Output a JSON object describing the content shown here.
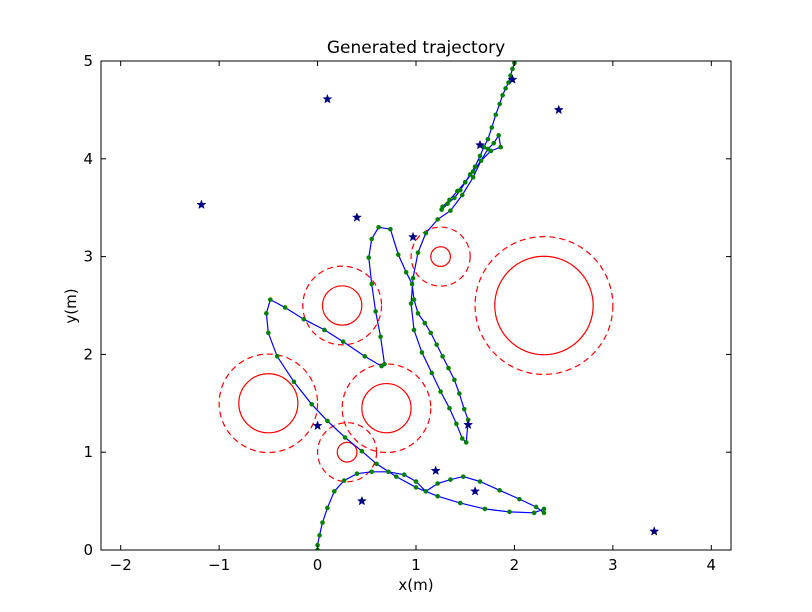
{
  "chart_data": {
    "type": "line",
    "title": "Generated trajectory",
    "xlabel": "x(m)",
    "ylabel": "y(m)",
    "xlim": [
      -2.2,
      4.2
    ],
    "ylim": [
      0,
      5
    ],
    "xticks": [
      -2,
      -1,
      0,
      1,
      2,
      3,
      4
    ],
    "yticks": [
      0,
      1,
      2,
      3,
      4,
      5
    ],
    "xtick_labels": [
      "−2",
      "−1",
      "0",
      "1",
      "2",
      "3",
      "4"
    ],
    "ytick_labels": [
      "0",
      "1",
      "2",
      "3",
      "4",
      "5"
    ],
    "grid": false,
    "colors": {
      "trajectory": "#0000ff",
      "waypoints": "#008000",
      "obstacle": "#ff0000",
      "landmarks": "#000080"
    },
    "trajectory": {
      "x": [
        0.0,
        0.0,
        0.02,
        0.05,
        0.1,
        0.17,
        0.27,
        0.4,
        0.55,
        0.72,
        0.88,
        1.0,
        1.1,
        1.22,
        1.35,
        1.48,
        1.65,
        1.85,
        2.05,
        2.22,
        2.3,
        2.3,
        2.2,
        1.95,
        1.7,
        1.45,
        1.22,
        1.0,
        0.8,
        0.6,
        0.45,
        0.28,
        0.1,
        -0.06,
        -0.24,
        -0.41,
        -0.5,
        -0.52,
        -0.48,
        -0.33,
        -0.14,
        0.07,
        0.26,
        0.48,
        0.65,
        0.68,
        0.64,
        0.59,
        0.55,
        0.52,
        0.55,
        0.62,
        0.74,
        0.82,
        0.9,
        0.96,
        0.98,
        1.02,
        1.09,
        1.15,
        1.21,
        1.27,
        1.33,
        1.39,
        1.44,
        1.49,
        1.53,
        1.51,
        1.47,
        1.41,
        1.34,
        1.25,
        1.16,
        1.06,
        0.98,
        0.95,
        0.97,
        1.02,
        1.1,
        1.22,
        1.35,
        1.47,
        1.58,
        1.66,
        1.73,
        1.79,
        1.84,
        1.86,
        1.76,
        1.66,
        1.58,
        1.5,
        1.42,
        1.34,
        1.27,
        1.26,
        1.32,
        1.39,
        1.45,
        1.5,
        1.55,
        1.6,
        1.65,
        1.69,
        1.73,
        1.77,
        1.81,
        1.85,
        1.88,
        1.91,
        1.94,
        1.96,
        1.98,
        2.0,
        2.0
      ],
      "y": [
        0.0,
        0.05,
        0.15,
        0.28,
        0.43,
        0.6,
        0.71,
        0.78,
        0.8,
        0.8,
        0.77,
        0.7,
        0.6,
        0.68,
        0.72,
        0.75,
        0.7,
        0.61,
        0.52,
        0.44,
        0.38,
        0.42,
        0.38,
        0.39,
        0.42,
        0.48,
        0.55,
        0.64,
        0.75,
        0.88,
        1.01,
        1.15,
        1.32,
        1.49,
        1.72,
        1.98,
        2.22,
        2.42,
        2.56,
        2.48,
        2.36,
        2.25,
        2.13,
        1.98,
        1.88,
        1.9,
        2.18,
        2.44,
        2.72,
        2.99,
        3.18,
        3.3,
        3.28,
        3.02,
        2.84,
        2.72,
        2.56,
        2.42,
        2.32,
        2.22,
        2.1,
        1.98,
        1.86,
        1.74,
        1.6,
        1.44,
        1.33,
        1.1,
        1.14,
        1.29,
        1.45,
        1.62,
        1.81,
        2.02,
        2.25,
        2.52,
        2.78,
        3.04,
        3.24,
        3.38,
        3.47,
        3.63,
        3.81,
        3.98,
        4.1,
        4.16,
        4.24,
        4.12,
        4.08,
        3.98,
        3.87,
        3.76,
        3.67,
        3.58,
        3.51,
        3.48,
        3.54,
        3.6,
        3.68,
        3.76,
        3.84,
        3.92,
        4.03,
        4.12,
        4.2,
        4.32,
        4.45,
        4.56,
        4.65,
        4.72,
        4.78,
        4.85,
        4.92,
        4.98,
        5.0
      ]
    },
    "waypoints": {
      "x": [
        0.0,
        0.0,
        0.02,
        0.05,
        0.1,
        0.17,
        0.27,
        0.4,
        0.55,
        0.72,
        0.88,
        1.0,
        1.1,
        1.22,
        1.35,
        1.48,
        1.65,
        1.85,
        2.05,
        2.22,
        2.3,
        2.3,
        2.2,
        1.95,
        1.7,
        1.45,
        1.22,
        1.0,
        0.8,
        0.6,
        0.45,
        0.28,
        0.1,
        -0.06,
        -0.24,
        -0.41,
        -0.5,
        -0.52,
        -0.48,
        -0.33,
        -0.14,
        0.07,
        0.26,
        0.48,
        0.65,
        0.68,
        0.64,
        0.59,
        0.55,
        0.52,
        0.55,
        0.62,
        0.74,
        0.82,
        0.9,
        0.96,
        0.98,
        1.02,
        1.09,
        1.15,
        1.21,
        1.27,
        1.33,
        1.39,
        1.44,
        1.49,
        1.53,
        1.51,
        1.47,
        1.41,
        1.34,
        1.25,
        1.16,
        1.06,
        0.98,
        0.95,
        0.97,
        1.02,
        1.1,
        1.22,
        1.35,
        1.47,
        1.58,
        1.66,
        1.73,
        1.79,
        1.84,
        1.86,
        1.76,
        1.66,
        1.58,
        1.5,
        1.42,
        1.34,
        1.27,
        1.26,
        1.32,
        1.39,
        1.45,
        1.5,
        1.55,
        1.6,
        1.65,
        1.69,
        1.73,
        1.77,
        1.81,
        1.85,
        1.88,
        1.91,
        1.94,
        1.96,
        1.98,
        2.0,
        2.0
      ],
      "y": [
        0.0,
        0.05,
        0.15,
        0.28,
        0.43,
        0.6,
        0.71,
        0.78,
        0.8,
        0.8,
        0.77,
        0.7,
        0.6,
        0.68,
        0.72,
        0.75,
        0.7,
        0.61,
        0.52,
        0.44,
        0.38,
        0.42,
        0.38,
        0.39,
        0.42,
        0.48,
        0.55,
        0.64,
        0.75,
        0.88,
        1.01,
        1.15,
        1.32,
        1.49,
        1.72,
        1.98,
        2.22,
        2.42,
        2.56,
        2.48,
        2.36,
        2.25,
        2.13,
        1.98,
        1.88,
        1.9,
        2.18,
        2.44,
        2.72,
        2.99,
        3.18,
        3.3,
        3.28,
        3.02,
        2.84,
        2.72,
        2.56,
        2.42,
        2.32,
        2.22,
        2.1,
        1.98,
        1.86,
        1.74,
        1.6,
        1.44,
        1.33,
        1.1,
        1.14,
        1.29,
        1.45,
        1.62,
        1.81,
        2.02,
        2.25,
        2.52,
        2.78,
        3.04,
        3.24,
        3.38,
        3.47,
        3.63,
        3.81,
        3.98,
        4.1,
        4.16,
        4.24,
        4.12,
        4.08,
        3.98,
        3.87,
        3.76,
        3.67,
        3.58,
        3.51,
        3.48,
        3.54,
        3.6,
        3.68,
        3.76,
        3.84,
        3.92,
        4.03,
        4.12,
        4.2,
        4.32,
        4.45,
        4.56,
        4.65,
        4.72,
        4.78,
        4.85,
        4.92,
        4.98,
        5.0
      ]
    },
    "landmarks": {
      "x": [
        0.1,
        2.45,
        -1.18,
        0.4,
        0.97,
        1.65,
        1.53,
        1.2,
        1.6,
        0.45,
        0.0,
        3.42,
        1.98
      ],
      "y": [
        4.61,
        4.5,
        3.53,
        3.4,
        3.2,
        4.14,
        1.28,
        0.81,
        0.6,
        0.5,
        1.27,
        0.19,
        4.81
      ]
    },
    "obstacles": [
      {
        "cx": 0.25,
        "cy": 2.5,
        "r": 0.2,
        "safety_r": 0.4
      },
      {
        "cx": 1.25,
        "cy": 3.0,
        "r": 0.1,
        "safety_r": 0.3
      },
      {
        "cx": 2.3,
        "cy": 2.5,
        "r": 0.5,
        "safety_r": 0.7
      },
      {
        "cx": -0.5,
        "cy": 1.5,
        "r": 0.3,
        "safety_r": 0.5
      },
      {
        "cx": 0.7,
        "cy": 1.45,
        "r": 0.25,
        "safety_r": 0.45
      },
      {
        "cx": 0.3,
        "cy": 1.0,
        "r": 0.1,
        "safety_r": 0.3
      }
    ]
  }
}
